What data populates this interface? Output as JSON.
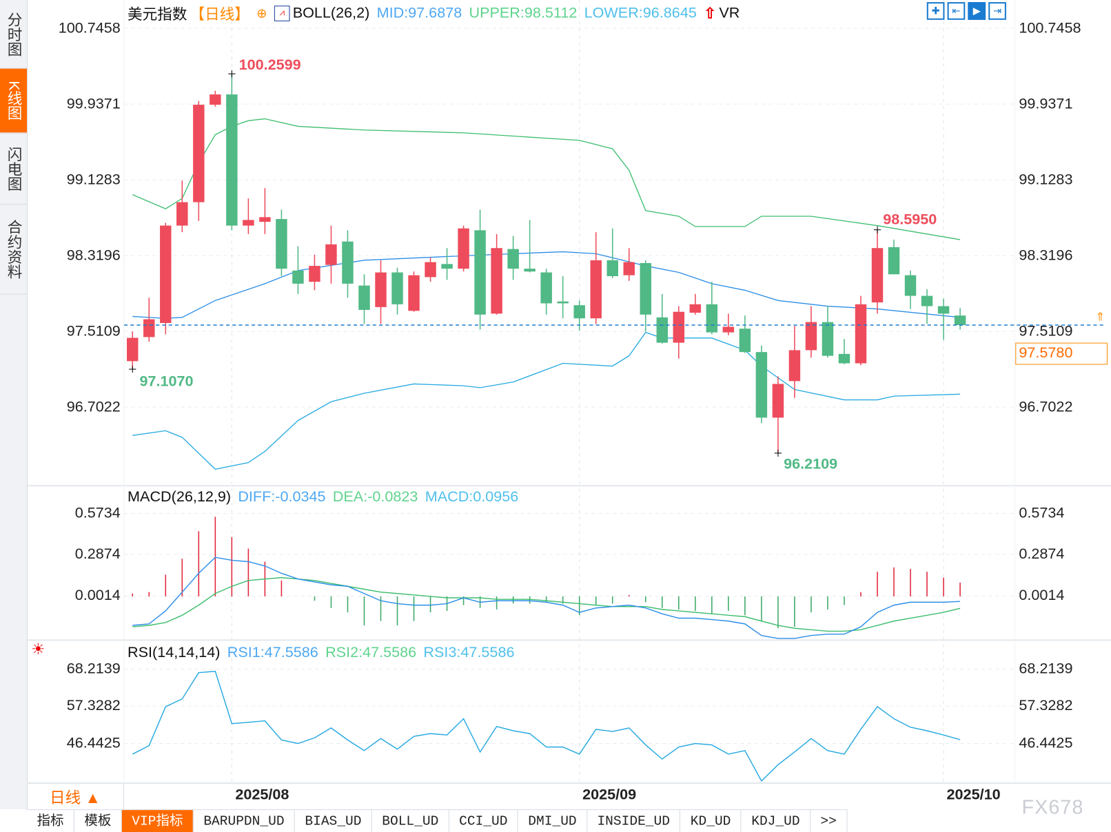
{
  "sidebar": {
    "items": [
      {
        "label": "分时图",
        "active": false
      },
      {
        "label": "K线图",
        "active": true
      },
      {
        "label": "闪电图",
        "active": false
      },
      {
        "label": "合约资料",
        "active": false
      }
    ]
  },
  "header": {
    "instrument": "美元指数",
    "period": "【日线】",
    "boll_label": "BOLL(26,2)",
    "mid": "MID:97.6878",
    "upper": "UPPER:98.5112",
    "lower": "LOWER:96.8645",
    "vr": "VR"
  },
  "toolbar": {
    "icons": [
      "crosshair-icon",
      "zoom-in-icon",
      "zoom-out-icon",
      "move-right-icon"
    ]
  },
  "colors": {
    "up": "#ee4c5c",
    "down": "#50b985",
    "mid": "#2b8ee8",
    "upper": "#3dbd6e",
    "lower": "#25a9e0",
    "diff": "#2b8ee8",
    "dea": "#3dbd6e",
    "rsi": "#25a9e0",
    "accent": "#ff6a00"
  },
  "main": {
    "ticks": [
      "100.7458",
      "99.9371",
      "99.1283",
      "98.3196",
      "97.5109",
      "96.7022"
    ],
    "current_price": "97.5780",
    "annotations": {
      "high": "100.2599",
      "low": "97.1070",
      "high2": "98.5950",
      "low2": "96.2109"
    }
  },
  "macd": {
    "label": "MACD(26,12,9)",
    "diff": "DIFF:-0.0345",
    "dea": "DEA:-0.0823",
    "macd": "MACD:0.0956",
    "ticks": [
      "0.5734",
      "0.2874",
      "0.0014"
    ]
  },
  "rsi": {
    "label": "RSI(14,14,14)",
    "rsi1": "RSI1:47.5586",
    "rsi2": "RSI2:47.5586",
    "rsi3": "RSI3:47.5586",
    "ticks": [
      "68.2139",
      "57.3282",
      "46.4425"
    ]
  },
  "date_axis": {
    "period_button": "日线 ▲",
    "labels": [
      "2025/08",
      "2025/09",
      "2025/10"
    ]
  },
  "bottom_tabs": [
    "指标",
    "模板",
    "VIP指标",
    "BARUPDN_UD",
    "BIAS_UD",
    "BOLL_UD",
    "CCI_UD",
    "DMI_UD",
    "INSIDE_UD",
    "KD_UD",
    "KDJ_UD",
    ">>"
  ],
  "watermark": "FX678",
  "chart_data": {
    "type": "candlestick",
    "ylim": [
      96.0,
      100.9
    ],
    "month_starts": {
      "2025/08": 6,
      "2025/09": 27,
      "2025/10": 49
    },
    "candles": [
      [
        97.193,
        97.442,
        97.51,
        97.107
      ],
      [
        97.45,
        97.64,
        97.87,
        97.4
      ],
      [
        97.6,
        98.64,
        98.67,
        97.48
      ],
      [
        98.64,
        98.89,
        99.12,
        98.57
      ],
      [
        98.89,
        99.93,
        99.97,
        98.69
      ],
      [
        99.93,
        100.04,
        100.08,
        99.91
      ],
      [
        100.04,
        98.64,
        100.2599,
        98.59
      ],
      [
        98.64,
        98.7,
        98.93,
        98.55
      ],
      [
        98.68,
        98.73,
        99.04,
        98.55
      ],
      [
        98.71,
        98.18,
        98.81,
        98.1
      ],
      [
        98.16,
        98.02,
        98.42,
        97.91
      ],
      [
        98.04,
        98.21,
        98.33,
        97.95
      ],
      [
        98.22,
        98.44,
        98.64,
        98.02
      ],
      [
        98.47,
        98.02,
        98.59,
        97.87
      ],
      [
        98.0,
        97.74,
        98.12,
        97.59
      ],
      [
        97.77,
        98.14,
        98.27,
        97.59
      ],
      [
        98.14,
        97.8,
        98.19,
        97.69
      ],
      [
        97.73,
        98.11,
        98.15,
        97.72
      ],
      [
        98.09,
        98.25,
        98.3,
        98.04
      ],
      [
        98.23,
        98.18,
        98.4,
        98.06
      ],
      [
        98.18,
        98.61,
        98.64,
        98.15
      ],
      [
        98.59,
        97.69,
        98.81,
        97.53
      ],
      [
        97.7,
        98.4,
        98.55,
        97.69
      ],
      [
        98.39,
        98.18,
        98.53,
        98.06
      ],
      [
        98.18,
        98.15,
        98.7,
        98.14
      ],
      [
        98.14,
        97.81,
        98.18,
        97.69
      ],
      [
        97.83,
        97.81,
        98.1,
        97.65
      ],
      [
        97.79,
        97.65,
        97.84,
        97.52
      ],
      [
        97.65,
        98.27,
        98.57,
        97.59
      ],
      [
        98.27,
        98.1,
        98.61,
        98.08
      ],
      [
        98.11,
        98.25,
        98.4,
        98.05
      ],
      [
        98.24,
        97.69,
        98.27,
        97.51
      ],
      [
        97.66,
        97.39,
        97.91,
        97.38
      ],
      [
        97.39,
        97.72,
        97.78,
        97.22
      ],
      [
        97.71,
        97.8,
        97.91,
        97.69
      ],
      [
        97.8,
        97.5,
        98.04,
        97.48
      ],
      [
        97.5,
        97.56,
        97.7,
        97.47
      ],
      [
        97.54,
        97.29,
        97.68,
        97.28
      ],
      [
        97.29,
        96.59,
        97.36,
        96.53
      ],
      [
        96.59,
        96.95,
        97.03,
        96.2109
      ],
      [
        96.98,
        97.31,
        97.57,
        96.8
      ],
      [
        97.31,
        97.61,
        97.78,
        97.23
      ],
      [
        97.61,
        97.25,
        97.78,
        97.23
      ],
      [
        97.27,
        97.17,
        97.43,
        97.16
      ],
      [
        97.17,
        97.8,
        97.89,
        97.15
      ],
      [
        97.82,
        98.4,
        98.595,
        97.7
      ],
      [
        98.41,
        98.12,
        98.49,
        98.12
      ],
      [
        98.11,
        97.89,
        98.16,
        97.75
      ],
      [
        97.89,
        97.78,
        97.96,
        97.59
      ],
      [
        97.78,
        97.7,
        97.86,
        97.42
      ],
      [
        97.68,
        97.578,
        97.76,
        97.53
      ]
    ],
    "boll_upper": [
      [
        0,
        98.97
      ],
      [
        2,
        98.82
      ],
      [
        3,
        98.93
      ],
      [
        4,
        99.31
      ],
      [
        5,
        99.61
      ],
      [
        6,
        99.7
      ],
      [
        7,
        99.76
      ],
      [
        8,
        99.78
      ],
      [
        10,
        99.7
      ],
      [
        14,
        99.66
      ],
      [
        20,
        99.63
      ],
      [
        27,
        99.55
      ],
      [
        29,
        99.46
      ],
      [
        30,
        99.23
      ],
      [
        31,
        98.8
      ],
      [
        33,
        98.74
      ],
      [
        34,
        98.63
      ],
      [
        37,
        98.63
      ],
      [
        38,
        98.74
      ],
      [
        41,
        98.74
      ],
      [
        45,
        98.64
      ],
      [
        50,
        98.49
      ]
    ],
    "boll_mid": [
      [
        0,
        97.67
      ],
      [
        2,
        97.65
      ],
      [
        3,
        97.66
      ],
      [
        5,
        97.84
      ],
      [
        8,
        98.02
      ],
      [
        10,
        98.16
      ],
      [
        14,
        98.27
      ],
      [
        19,
        98.31
      ],
      [
        23,
        98.34
      ],
      [
        26,
        98.36
      ],
      [
        28,
        98.34
      ],
      [
        31,
        98.21
      ],
      [
        33,
        98.14
      ],
      [
        35,
        98.02
      ],
      [
        37,
        97.95
      ],
      [
        39,
        97.84
      ],
      [
        42,
        97.78
      ],
      [
        45,
        97.75
      ],
      [
        50,
        97.66
      ]
    ],
    "boll_lower": [
      [
        0,
        96.4
      ],
      [
        2,
        96.45
      ],
      [
        3,
        96.38
      ],
      [
        5,
        96.04
      ],
      [
        7,
        96.11
      ],
      [
        8,
        96.23
      ],
      [
        10,
        96.56
      ],
      [
        12,
        96.76
      ],
      [
        14,
        96.85
      ],
      [
        17,
        96.95
      ],
      [
        20,
        96.93
      ],
      [
        21,
        96.91
      ],
      [
        23,
        96.97
      ],
      [
        26,
        97.17
      ],
      [
        29,
        97.14
      ],
      [
        30,
        97.25
      ],
      [
        31,
        97.5
      ],
      [
        32,
        97.44
      ],
      [
        35,
        97.44
      ],
      [
        37,
        97.31
      ],
      [
        38,
        97.14
      ],
      [
        40,
        96.89
      ],
      [
        43,
        96.78
      ],
      [
        45,
        96.78
      ],
      [
        46,
        96.82
      ],
      [
        50,
        96.84
      ]
    ],
    "macd_hist": [
      0.02,
      0.03,
      0.15,
      0.26,
      0.45,
      0.55,
      0.41,
      0.33,
      0.24,
      0.11,
      0,
      -0.03,
      -0.08,
      -0.11,
      -0.2,
      -0.17,
      -0.2,
      -0.17,
      -0.11,
      -0.1,
      -0.06,
      -0.08,
      -0.09,
      -0.05,
      -0.05,
      -0.04,
      -0.05,
      -0.13,
      -0.06,
      -0.05,
      0.01,
      -0.04,
      -0.08,
      -0.09,
      -0.1,
      -0.12,
      -0.1,
      -0.13,
      -0.17,
      -0.22,
      -0.21,
      -0.11,
      -0.09,
      -0.06,
      0.03,
      0.17,
      0.2,
      0.19,
      0.17,
      0.13,
      0.0956
    ],
    "macd_diff": [
      -0.2,
      -0.19,
      -0.1,
      0.03,
      0.16,
      0.27,
      0.25,
      0.24,
      0.21,
      0.16,
      0.12,
      0.1,
      0.08,
      0.07,
      0.02,
      -0.03,
      -0.05,
      -0.06,
      -0.06,
      -0.05,
      -0.01,
      -0.04,
      -0.03,
      -0.03,
      -0.03,
      -0.04,
      -0.06,
      -0.11,
      -0.08,
      -0.07,
      -0.06,
      -0.08,
      -0.12,
      -0.15,
      -0.15,
      -0.16,
      -0.17,
      -0.19,
      -0.27,
      -0.29,
      -0.29,
      -0.27,
      -0.26,
      -0.26,
      -0.21,
      -0.11,
      -0.06,
      -0.04,
      -0.04,
      -0.04,
      -0.0345
    ],
    "macd_dea": [
      -0.21,
      -0.2,
      -0.18,
      -0.13,
      -0.06,
      0.02,
      0.07,
      0.11,
      0.12,
      0.13,
      0.12,
      0.11,
      0.09,
      0.07,
      0.05,
      0.03,
      0.02,
      0.01,
      0,
      -0.01,
      -0.01,
      -0.01,
      -0.02,
      -0.02,
      -0.02,
      -0.03,
      -0.04,
      -0.05,
      -0.06,
      -0.07,
      -0.07,
      -0.07,
      -0.09,
      -0.1,
      -0.11,
      -0.12,
      -0.13,
      -0.14,
      -0.17,
      -0.2,
      -0.22,
      -0.23,
      -0.24,
      -0.24,
      -0.23,
      -0.2,
      -0.17,
      -0.15,
      -0.13,
      -0.11,
      -0.0823
    ],
    "rsi": [
      43.33,
      45.82,
      57.22,
      59.5,
      67.18,
      67.59,
      52.25,
      52.66,
      53.08,
      47.48,
      46.44,
      48.1,
      51.0,
      47.48,
      44.37,
      47.89,
      44.78,
      48.52,
      49.35,
      48.93,
      53.7,
      43.96,
      51.42,
      50.18,
      49.35,
      45.41,
      45.41,
      43.33,
      50.59,
      49.97,
      51.0,
      46.03,
      41.88,
      45.41,
      46.44,
      46.03,
      43.33,
      44.37,
      35.46,
      40.23,
      43.96,
      47.89,
      44.37,
      43.33,
      50.59,
      57.22,
      53.7,
      51.21,
      50.18,
      48.93,
      47.5586
    ]
  }
}
